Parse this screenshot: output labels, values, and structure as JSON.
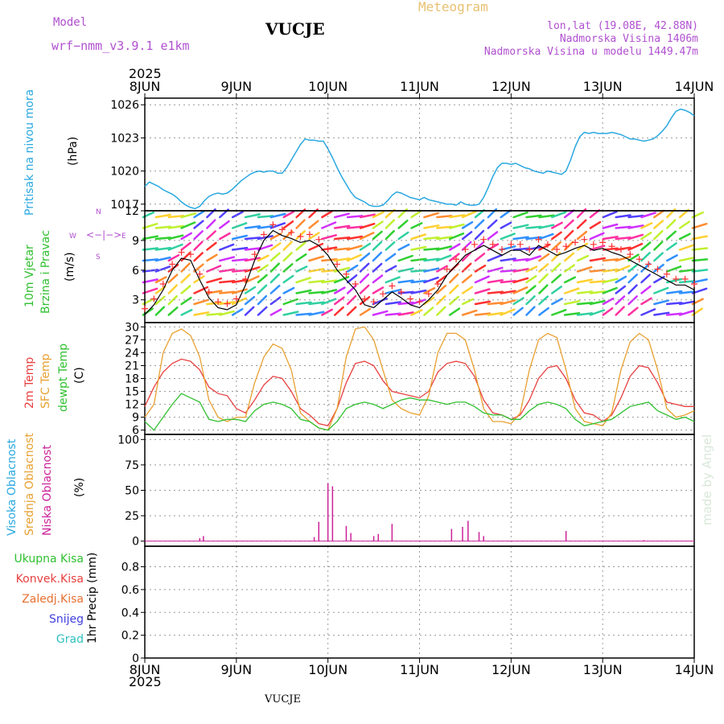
{
  "header": {
    "model_label": "Model",
    "model_value": "wrf−nmm_v3.9.1  e1km",
    "station": "VUCJE",
    "title": "Meteogram",
    "lonlat": "lon,lat (19.08E, 42.88N)",
    "altitude": "Nadmorska Visina 1406m",
    "altitude_model": "Nadmorska Visina u modelu 1449.47m",
    "footer": "VUCJE",
    "credit": "made by Angel"
  },
  "colors": {
    "pressure": "#2aa8e0",
    "t2m": "#e84040",
    "sfc": "#e8a030",
    "dewpt": "#30c030",
    "cloud": "#cc2299",
    "grid": "#999999"
  },
  "chart_data": {
    "type": "line",
    "x_ticks": [
      "8JUN",
      "9JUN",
      "10JUN",
      "11JUN",
      "12JUN",
      "13JUN",
      "14JUN"
    ],
    "x_year": "2025",
    "panels": [
      {
        "id": "pressure",
        "ylabel": "(hPa)",
        "side_label": "Pritisak na nivou mora",
        "yticks": [
          1017,
          1020,
          1023,
          1026
        ],
        "ylim": [
          1016.4,
          1026.6
        ],
        "series": [
          {
            "x": [
              0,
              0.05,
              0.1,
              0.15,
              0.2,
              0.25,
              0.3,
              0.35,
              0.4,
              0.45,
              0.5,
              0.55,
              0.6,
              0.65,
              0.7,
              0.75,
              0.8,
              0.85,
              0.9,
              0.95,
              1.0,
              1.05,
              1.1,
              1.15,
              1.2,
              1.25,
              1.3,
              1.35,
              1.4,
              1.45,
              1.5,
              1.55,
              1.6,
              1.65,
              1.7,
              1.75,
              1.8,
              1.85,
              1.9,
              1.95,
              2.0,
              2.05,
              2.1,
              2.15,
              2.2,
              2.25,
              2.3,
              2.35,
              2.4,
              2.45,
              2.5,
              2.55,
              2.6,
              2.65,
              2.7,
              2.75,
              2.8,
              2.85,
              2.9,
              2.95,
              3.0,
              3.05,
              3.1,
              3.15,
              3.2,
              3.25,
              3.3,
              3.35,
              3.4,
              3.45,
              3.5,
              3.55,
              3.6,
              3.65,
              3.7,
              3.75,
              3.8,
              3.85,
              3.9,
              3.95,
              4.0,
              4.05,
              4.1,
              4.15,
              4.2,
              4.25,
              4.3,
              4.35,
              4.4,
              4.45,
              4.5,
              4.55,
              4.6,
              4.65,
              4.7,
              4.75,
              4.8,
              4.85,
              4.9,
              4.95,
              5.0,
              5.05,
              5.1,
              5.15,
              5.2,
              5.25,
              5.3,
              5.35,
              5.4,
              5.45,
              5.5,
              5.55,
              5.6,
              5.65,
              5.7,
              5.75,
              5.8,
              5.85,
              5.9,
              5.95,
              6.0
            ],
            "y": [
              1018.6,
              1019.0,
              1018.8,
              1018.6,
              1018.3,
              1018.1,
              1017.9,
              1017.6,
              1017.2,
              1016.9,
              1016.7,
              1016.6,
              1016.8,
              1017.3,
              1017.7,
              1017.9,
              1018.0,
              1017.9,
              1018.0,
              1018.3,
              1018.7,
              1019.1,
              1019.4,
              1019.7,
              1019.9,
              1020.0,
              1019.9,
              1020.0,
              1020.0,
              1019.8,
              1019.8,
              1020.3,
              1021.0,
              1021.7,
              1022.4,
              1022.9,
              1022.8,
              1022.8,
              1022.7,
              1022.7,
              1022.0,
              1021.2,
              1020.3,
              1019.5,
              1018.8,
              1018.1,
              1017.6,
              1017.4,
              1017.2,
              1016.9,
              1016.8,
              1016.8,
              1016.9,
              1017.3,
              1017.8,
              1018.1,
              1018.0,
              1017.8,
              1017.6,
              1017.5,
              1017.4,
              1017.6,
              1017.4,
              1017.3,
              1017.2,
              1017.1,
              1017.0,
              1017.0,
              1016.9,
              1017.2,
              1017.0,
              1016.9,
              1016.9,
              1017.0,
              1017.6,
              1018.5,
              1019.5,
              1020.3,
              1020.7,
              1020.7,
              1020.6,
              1020.7,
              1020.5,
              1020.3,
              1020.2,
              1020.0,
              1019.9,
              1019.8,
              1020.0,
              1019.9,
              1019.8,
              1019.7,
              1020.0,
              1021.0,
              1022.2,
              1023.1,
              1023.5,
              1023.4,
              1023.5,
              1023.4,
              1023.4,
              1023.4,
              1023.5,
              1023.4,
              1023.3,
              1023.1,
              1022.9,
              1022.9,
              1022.8,
              1022.7,
              1022.8,
              1022.9,
              1023.2,
              1023.6,
              1024.1,
              1024.8,
              1025.4,
              1025.6,
              1025.5,
              1025.3,
              1025.0
            ]
          }
        ]
      },
      {
        "id": "wind",
        "ylabel": "(m/s)",
        "side_label": [
          "10m Vjetar",
          "Brzina i Pravac"
        ],
        "compass": {
          "n": "N",
          "s": "S",
          "e": "E",
          "w": "W"
        },
        "yticks": [
          3,
          6,
          9,
          12
        ],
        "ylim": [
          0.7,
          12.0
        ],
        "series": [
          {
            "name": "speed",
            "x": [
              0,
              0.1,
              0.2,
              0.3,
              0.4,
              0.5,
              0.6,
              0.7,
              0.8,
              0.9,
              1.0,
              1.1,
              1.2,
              1.3,
              1.4,
              1.5,
              1.6,
              1.7,
              1.8,
              1.9,
              2.0,
              2.1,
              2.2,
              2.3,
              2.4,
              2.5,
              2.6,
              2.7,
              2.8,
              2.9,
              3.0,
              3.1,
              3.2,
              3.3,
              3.4,
              3.5,
              3.6,
              3.7,
              3.8,
              3.9,
              4.0,
              4.1,
              4.2,
              4.3,
              4.4,
              4.5,
              4.6,
              4.7,
              4.8,
              4.9,
              5.0,
              5.1,
              5.2,
              5.3,
              5.4,
              5.5,
              5.6,
              5.7,
              5.8,
              5.9,
              6.0
            ],
            "y": [
              1.5,
              2.5,
              4.0,
              6.0,
              7.2,
              7.0,
              5.0,
              3.2,
              2.2,
              2.0,
              2.5,
              4.5,
              7.0,
              9.0,
              10.0,
              9.5,
              9.2,
              8.8,
              9.0,
              8.5,
              7.5,
              6.0,
              5.0,
              4.0,
              2.5,
              2.2,
              3.0,
              3.8,
              3.2,
              2.5,
              2.2,
              3.0,
              4.0,
              5.5,
              6.5,
              7.5,
              8.0,
              8.5,
              8.0,
              7.5,
              8.0,
              8.0,
              7.5,
              8.5,
              8.0,
              7.5,
              7.8,
              8.2,
              8.5,
              8.0,
              8.2,
              7.8,
              7.5,
              7.0,
              6.5,
              6.0,
              5.5,
              5.0,
              4.5,
              4.5,
              4.0
            ]
          }
        ]
      },
      {
        "id": "temperature",
        "ylabel": "(C)",
        "side_label": [
          "2m Temp",
          "SFC Temp",
          "dewpt Temp"
        ],
        "yticks": [
          6,
          9,
          12,
          15,
          18,
          21,
          24,
          27,
          30
        ],
        "ylim": [
          5.0,
          31.0
        ],
        "x": [
          0,
          0.1,
          0.2,
          0.3,
          0.4,
          0.5,
          0.6,
          0.7,
          0.8,
          0.9,
          1.0,
          1.1,
          1.2,
          1.3,
          1.4,
          1.5,
          1.6,
          1.7,
          1.8,
          1.9,
          2.0,
          2.1,
          2.2,
          2.3,
          2.4,
          2.5,
          2.6,
          2.7,
          2.8,
          2.9,
          3.0,
          3.1,
          3.2,
          3.3,
          3.4,
          3.5,
          3.6,
          3.7,
          3.8,
          3.9,
          4.0,
          4.1,
          4.2,
          4.3,
          4.4,
          4.5,
          4.6,
          4.7,
          4.8,
          4.9,
          5.0,
          5.1,
          5.2,
          5.3,
          5.4,
          5.5,
          5.6,
          5.7,
          5.8,
          5.9,
          6.0
        ],
        "series": [
          {
            "name": "2m Temp",
            "y": [
              11.5,
              16.0,
              19.5,
              21.5,
              22.5,
              22.0,
              20.0,
              16.0,
              14.5,
              14.0,
              11.0,
              10.0,
              13.0,
              16.5,
              18.5,
              18.0,
              15.0,
              11.0,
              9.5,
              7.5,
              7.0,
              11.0,
              17.0,
              21.5,
              22.0,
              21.0,
              17.5,
              15.0,
              14.5,
              14.0,
              13.5,
              15.0,
              19.5,
              21.5,
              22.0,
              21.5,
              18.5,
              13.0,
              10.0,
              9.5,
              8.5,
              9.5,
              13.0,
              18.0,
              20.5,
              21.0,
              18.0,
              13.0,
              10.0,
              9.5,
              8.0,
              9.5,
              13.5,
              18.5,
              21.0,
              20.5,
              17.0,
              12.5,
              12.0,
              11.5,
              11.5
            ]
          },
          {
            "name": "SFC Temp",
            "y": [
              9.0,
              12.0,
              24.0,
              28.5,
              29.5,
              28.0,
              23.0,
              13.0,
              9.0,
              8.0,
              9.0,
              9.0,
              17.0,
              23.0,
              26.0,
              25.0,
              20.0,
              10.0,
              8.0,
              6.5,
              6.0,
              11.0,
              23.0,
              29.5,
              30.0,
              27.0,
              20.0,
              13.0,
              11.0,
              10.0,
              9.5,
              14.0,
              24.0,
              28.5,
              28.5,
              27.0,
              20.0,
              11.0,
              8.0,
              8.0,
              7.5,
              10.0,
              20.0,
              27.0,
              28.5,
              27.5,
              20.0,
              11.0,
              8.0,
              7.5,
              7.0,
              10.0,
              20.0,
              26.5,
              28.5,
              27.0,
              20.0,
              11.0,
              9.0,
              9.5,
              10.5
            ]
          },
          {
            "name": "dewpt Temp",
            "y": [
              8.0,
              6.0,
              9.0,
              12.0,
              14.5,
              13.5,
              12.5,
              8.5,
              8.0,
              8.5,
              8.5,
              8.0,
              10.5,
              12.0,
              12.5,
              12.0,
              11.0,
              8.5,
              8.0,
              6.5,
              6.0,
              8.0,
              11.0,
              12.0,
              12.5,
              12.0,
              11.0,
              12.0,
              13.0,
              13.5,
              13.0,
              13.0,
              12.5,
              12.0,
              12.5,
              12.5,
              11.5,
              10.0,
              9.5,
              9.5,
              8.5,
              8.5,
              10.5,
              12.0,
              12.5,
              12.0,
              11.0,
              8.5,
              7.0,
              7.5,
              8.0,
              8.5,
              10.0,
              11.5,
              12.0,
              12.5,
              10.5,
              9.5,
              8.5,
              9.0,
              8.0
            ]
          }
        ]
      },
      {
        "id": "clouds",
        "ylabel": "(%)",
        "side_label": [
          "Visoka Oblacnost",
          "Srednja Oblacnost",
          "Niska Oblacnost"
        ],
        "yticks": [
          0,
          25,
          50,
          75,
          100
        ],
        "ylim": [
          -5,
          105
        ],
        "type": "bar",
        "series": [
          {
            "name": "Niska Oblacnost",
            "x": [
              0.6,
              0.64,
              1.85,
              1.9,
              2.0,
              2.05,
              2.2,
              2.25,
              2.5,
              2.55,
              2.7,
              3.35,
              3.47,
              3.53,
              3.65,
              3.7,
              4.6,
              5.45
            ],
            "y": [
              3,
              5,
              4,
              19,
              57,
              54,
              15,
              8,
              5,
              7,
              17,
              12,
              14,
              20,
              9,
              5,
              10,
              1
            ]
          }
        ]
      },
      {
        "id": "precip",
        "ylabel": "1hr Precip (mm)",
        "side_label": [
          "Ukupna Kisa",
          "Konvek.Kisa",
          "Zaledj.Kisa",
          "Snijeg",
          "Grad"
        ],
        "yticks": [
          0,
          0.2,
          0.4,
          0.6,
          0.8
        ],
        "ylim": [
          0,
          0.98
        ],
        "type": "bar",
        "series": []
      }
    ]
  }
}
